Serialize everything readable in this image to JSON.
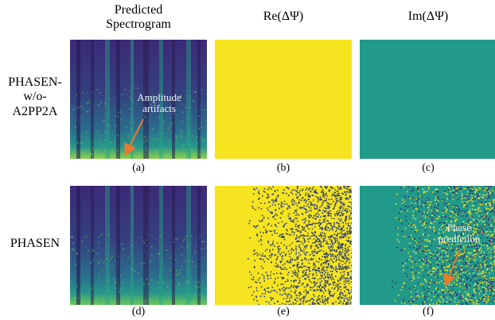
{
  "column_headers": {
    "spectrogram": "Predicted\nSpectrogram",
    "re": "Re(ΔΨ)",
    "im": "Im(ΔΨ)"
  },
  "row_labels": {
    "top": "PHASEN-\nw/o-\nA2PP2A",
    "bottom": "PHASEN"
  },
  "panel_labels": [
    "(a)",
    "(b)",
    "(c)",
    "(d)",
    "(e)",
    "(f)"
  ],
  "annotations": {
    "amplitude": "Amplitude\nartifacts",
    "phase": "Phase\nprediction"
  },
  "colors": {
    "viridis_dark": "#3b1a6b",
    "viridis_blue": "#2d5f8e",
    "viridis_teal": "#1f9a8a",
    "viridis_green": "#5cc863",
    "viridis_yellow": "#f6e51e",
    "annotation_arrow": "#e87a2e"
  }
}
